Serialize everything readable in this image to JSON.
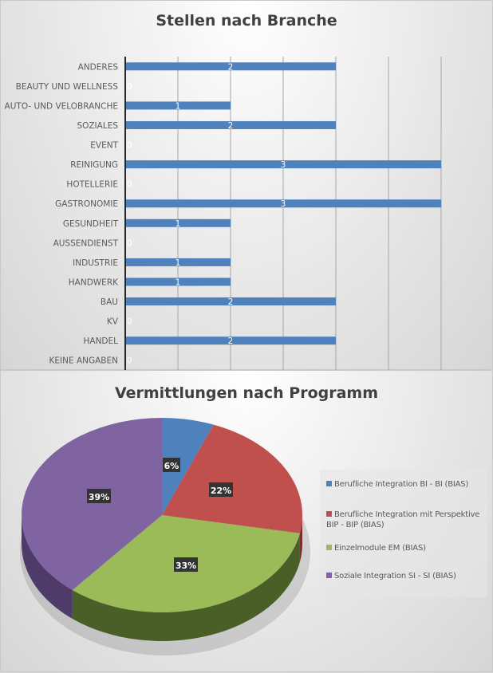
{
  "chart_data": [
    {
      "type": "bar",
      "orientation": "horizontal",
      "title": "Stellen nach Branche",
      "categories": [
        "ANDERES",
        "BEAUTY UND WELLNESS",
        "AUTO- UND VELOBRANCHE",
        "SOZIALES",
        "EVENT",
        "REINIGUNG",
        "HOTELLERIE",
        "GASTRONOMIE",
        "GESUNDHEIT",
        "AUSSENDIENST",
        "INDUSTRIE",
        "HANDWERK",
        "BAU",
        "KV",
        "HANDEL",
        "KEINE ANGABEN"
      ],
      "values": [
        2,
        0,
        1,
        2,
        0,
        3,
        0,
        3,
        1,
        0,
        1,
        1,
        2,
        0,
        2,
        0
      ],
      "xlim": [
        0,
        3
      ],
      "grid_step": 0.5,
      "grid": true,
      "tick_labels_shown": false,
      "data_labels": true,
      "bar_color": "#4f81bd",
      "xlabel": "",
      "ylabel": ""
    },
    {
      "type": "pie",
      "style": "3d",
      "title": "Vermittlungen nach Programm",
      "labels": [
        "Berufliche Integration BI - BI (BIAS)",
        "Berufliche Integration mit Perspektive BIP - BIP (BIAS)",
        "Einzelmodule EM (BIAS)",
        "Soziale Integration SI - SI (BIAS)"
      ],
      "values": [
        6,
        22,
        33,
        39
      ],
      "value_labels": [
        "6%",
        "22%",
        "33%",
        "39%"
      ],
      "colors": [
        "#4f81bd",
        "#c0504d",
        "#9bbb59",
        "#8064a2"
      ],
      "legend": "right"
    }
  ]
}
